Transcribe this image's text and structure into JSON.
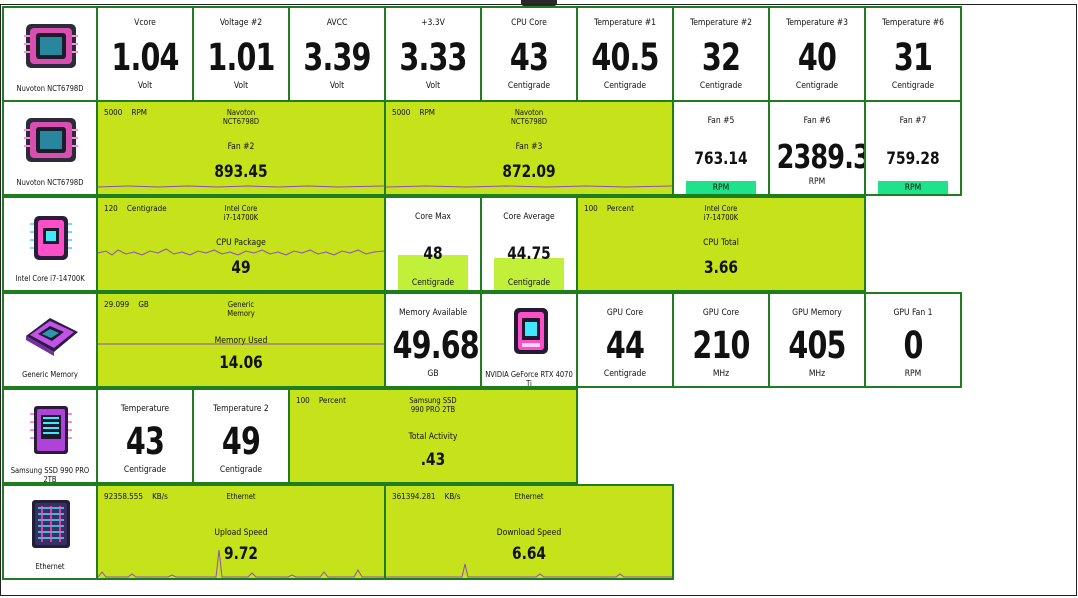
{
  "rows": {
    "nuvoton": {
      "device_label": "Nuvoton NCT6798D",
      "icon": "motherboard-chip-icon",
      "tiles": [
        {
          "label": "Vcore",
          "value": "1.04",
          "unit": "Volt"
        },
        {
          "label": "Voltage #2",
          "value": "1.01",
          "unit": "Volt"
        },
        {
          "label": "AVCC",
          "value": "3.39",
          "unit": "Volt"
        },
        {
          "label": "+3.3V",
          "value": "3.33",
          "unit": "Volt"
        },
        {
          "label": "CPU Core",
          "value": "43",
          "unit": "Centigrade"
        },
        {
          "label": "Temperature #1",
          "value": "40.5",
          "unit": "Centigrade"
        },
        {
          "label": "Temperature #2",
          "value": "32",
          "unit": "Centigrade"
        },
        {
          "label": "Temperature #3",
          "value": "40",
          "unit": "Centigrade"
        },
        {
          "label": "Temperature #6",
          "value": "31",
          "unit": "Centigrade"
        }
      ]
    },
    "fans": {
      "device_label": "Nuvoton NCT6798D",
      "icon": "motherboard-chip-icon",
      "graphs": [
        {
          "max": "5000",
          "unit": "RPM",
          "source": "Navoton",
          "source2": "NCT6798D",
          "label": "Fan #2",
          "value": "893.45"
        },
        {
          "max": "5000",
          "unit": "RPM",
          "source": "Navoton",
          "source2": "NCT6798D",
          "label": "Fan #3",
          "value": "872.09"
        }
      ],
      "tiles": [
        {
          "label": "Fan #5",
          "value": "763.14",
          "unit": "RPM",
          "bar": true
        },
        {
          "label": "Fan #6",
          "value": "2389.38",
          "unit": "RPM",
          "bar": false
        },
        {
          "label": "Fan #7",
          "value": "759.28",
          "unit": "RPM",
          "bar": true
        }
      ]
    },
    "cpu": {
      "device_label": "Intel Core i7-14700K",
      "icon": "cpu-chip-icon",
      "graph": {
        "max": "120",
        "unit": "Centigrade",
        "source": "Intel Core",
        "source2": "i7-14700K",
        "label": "CPU Package",
        "value": "49"
      },
      "tiles": [
        {
          "label": "Core Max",
          "value": "48",
          "unit": "Centigrade"
        },
        {
          "label": "Core Average",
          "value": "44.75",
          "unit": "Centigrade"
        }
      ],
      "graph2": {
        "max": "100",
        "unit": "Percent",
        "source": "Intel Core",
        "source2": "i7-14700K",
        "label": "CPU Total",
        "value": "3.66"
      }
    },
    "memory": {
      "device_label": "Generic Memory",
      "icon": "memory-module-icon",
      "graph": {
        "max": "29.099",
        "unit": "GB",
        "source": "Generic",
        "source2": "Memory",
        "label": "Memory Used",
        "value": "14.06"
      },
      "tile": {
        "label": "Memory Available",
        "value": "49.68",
        "unit": "GB"
      },
      "gpu_label": "NVIDIA GeForce RTX 4070 Ti",
      "gpu_icon": "graphics-card-icon",
      "gpu_tiles": [
        {
          "label": "GPU Core",
          "value": "44",
          "unit": "Centigrade"
        },
        {
          "label": "GPU Core",
          "value": "210",
          "unit": "MHz"
        },
        {
          "label": "GPU Memory",
          "value": "405",
          "unit": "MHz"
        },
        {
          "label": "GPU Fan 1",
          "value": "0",
          "unit": "RPM"
        }
      ]
    },
    "ssd": {
      "device_label": "Samsung SSD 990 PRO 2TB",
      "icon": "ssd-drive-icon",
      "tiles": [
        {
          "label": "Temperature",
          "value": "43",
          "unit": "Centigrade"
        },
        {
          "label": "Temperature 2",
          "value": "49",
          "unit": "Centigrade"
        }
      ],
      "graph": {
        "max": "100",
        "unit": "Percent",
        "source": "Samsung SSD",
        "source2": "990 PRO 2TB",
        "label": "Total Activity",
        "value": ".43"
      }
    },
    "ethernet": {
      "device_label": "Ethernet",
      "icon": "network-adapter-icon",
      "graphs": [
        {
          "max": "92358.555",
          "unit": "KB/s",
          "source": "Ethernet",
          "label": "Upload Speed",
          "value": "9.72"
        },
        {
          "max": "361394.281",
          "unit": "KB/s",
          "source": "Ethernet",
          "label": "Download Speed",
          "value": "6.64"
        }
      ]
    }
  },
  "colors": {
    "border": "#1e7d1e",
    "graph_bg": "#c6e21a",
    "sparkline": "#8a4fb8",
    "bar_green": "#1ee38a",
    "bar_lime": "#c2f03a"
  }
}
